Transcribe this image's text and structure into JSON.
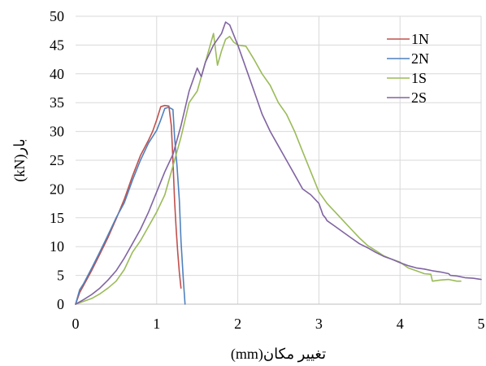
{
  "chart_data": {
    "type": "line",
    "title": "",
    "xlabel": "تغییر مکان(mm)",
    "ylabel": "بار(kN)",
    "xlim": [
      0,
      5
    ],
    "ylim": [
      0,
      50
    ],
    "xticks": [
      "0",
      "1",
      "2",
      "3",
      "4",
      "5"
    ],
    "yticks": [
      "0",
      "5",
      "10",
      "15",
      "20",
      "25",
      "30",
      "35",
      "40",
      "45",
      "50"
    ],
    "grid": true,
    "legend": "top-right",
    "series": [
      {
        "name": "1N",
        "color": "#c0504d",
        "x": [
          0,
          0.05,
          0.1,
          0.2,
          0.3,
          0.4,
          0.5,
          0.6,
          0.7,
          0.8,
          0.9,
          0.95,
          1.0,
          1.05,
          1.1,
          1.15,
          1.18,
          1.2,
          1.22,
          1.24,
          1.26,
          1.28,
          1.3
        ],
        "y": [
          0,
          2,
          3.3,
          5.9,
          8.7,
          11.6,
          14.8,
          18.2,
          22.2,
          25.8,
          28.5,
          30,
          32,
          34.3,
          34.5,
          34.4,
          31,
          25,
          18,
          13,
          9,
          5.5,
          2.8
        ]
      },
      {
        "name": "2N",
        "color": "#4f81bd",
        "x": [
          0,
          0.05,
          0.1,
          0.2,
          0.3,
          0.4,
          0.5,
          0.6,
          0.7,
          0.8,
          0.9,
          1.0,
          1.05,
          1.1,
          1.15,
          1.2,
          1.22,
          1.25,
          1.28,
          1.3,
          1.33,
          1.35
        ],
        "y": [
          0,
          2.5,
          3.6,
          6.3,
          9.1,
          12,
          15,
          17.6,
          21.5,
          25,
          28,
          30.2,
          32,
          34,
          34.2,
          33.8,
          29,
          24,
          18,
          11,
          4,
          0
        ]
      },
      {
        "name": "1S",
        "color": "#9bbb59",
        "x": [
          0,
          0.1,
          0.2,
          0.3,
          0.4,
          0.5,
          0.6,
          0.7,
          0.8,
          0.9,
          1.0,
          1.1,
          1.2,
          1.3,
          1.4,
          1.5,
          1.6,
          1.7,
          1.75,
          1.8,
          1.85,
          1.9,
          1.95,
          2.0,
          2.1,
          2.2,
          2.3,
          2.4,
          2.5,
          2.6,
          2.7,
          2.8,
          2.9,
          3.0,
          3.1,
          3.2,
          3.3,
          3.4,
          3.5,
          3.6,
          3.7,
          3.8,
          3.9,
          4.0,
          4.1,
          4.2,
          4.3,
          4.38,
          4.4,
          4.5,
          4.6,
          4.7,
          4.75
        ],
        "y": [
          0,
          0.5,
          1,
          1.8,
          2.8,
          4,
          6,
          9,
          11,
          13.5,
          16,
          19,
          24,
          29,
          35,
          37,
          42,
          47,
          41.5,
          44,
          46,
          46.5,
          45.5,
          45,
          44.8,
          42.5,
          40,
          38,
          35,
          33,
          30,
          26.5,
          23,
          19.5,
          17.5,
          16,
          14.5,
          13,
          11.5,
          10.2,
          9.3,
          8.4,
          7.8,
          7.3,
          6.3,
          5.8,
          5.3,
          5.2,
          4,
          4.2,
          4.3,
          4,
          4
        ]
      },
      {
        "name": "2S",
        "color": "#8064a2",
        "x": [
          0,
          0.1,
          0.2,
          0.3,
          0.4,
          0.5,
          0.6,
          0.7,
          0.8,
          0.9,
          1.0,
          1.1,
          1.2,
          1.3,
          1.4,
          1.5,
          1.55,
          1.6,
          1.7,
          1.8,
          1.85,
          1.9,
          2.0,
          2.1,
          2.2,
          2.3,
          2.4,
          2.5,
          2.6,
          2.7,
          2.8,
          2.9,
          3.0,
          3.05,
          3.08,
          3.1,
          3.2,
          3.3,
          3.4,
          3.5,
          3.6,
          3.7,
          3.8,
          3.9,
          4.0,
          4.1,
          4.2,
          4.3,
          4.4,
          4.5,
          4.6,
          4.62,
          4.7,
          4.8,
          4.9,
          5.0
        ],
        "y": [
          0,
          0.8,
          1.7,
          2.8,
          4.2,
          5.8,
          8,
          10.5,
          13,
          16,
          19.5,
          23,
          26,
          31,
          37,
          41,
          39.5,
          42,
          45,
          47,
          49,
          48.5,
          45,
          41,
          37,
          33,
          30,
          27.5,
          25,
          22.5,
          20,
          19,
          17.5,
          15.5,
          15,
          14.5,
          13.5,
          12.5,
          11.5,
          10.5,
          9.8,
          9,
          8.3,
          7.8,
          7.2,
          6.7,
          6.3,
          6.1,
          5.8,
          5.6,
          5.3,
          5,
          4.9,
          4.6,
          4.5,
          4.3
        ]
      }
    ]
  }
}
